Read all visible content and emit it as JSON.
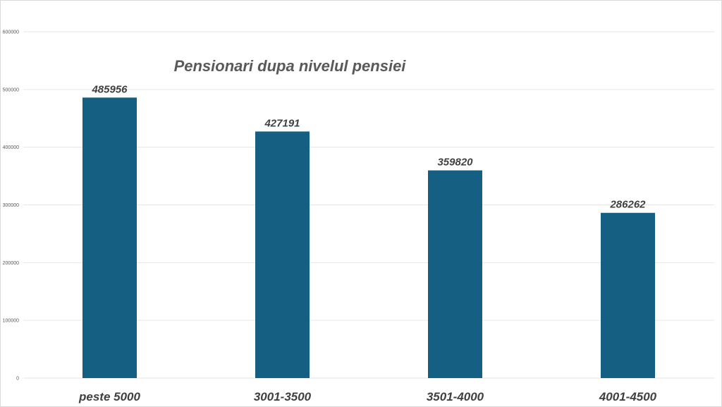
{
  "chart_data": {
    "type": "bar",
    "title": "Pensionari dupa nivelul pensiei",
    "xlabel": "",
    "ylabel": "",
    "categories": [
      "peste 5000",
      "3001-3500",
      "3501-4000",
      "4001-4500"
    ],
    "values": [
      485956,
      427191,
      359820,
      286262
    ],
    "data_labels": [
      "485956",
      "427191",
      "359820",
      "286262"
    ],
    "ylim": [
      0,
      600000
    ],
    "yticks": [
      0,
      100000,
      200000,
      300000,
      400000,
      500000,
      600000
    ],
    "ytick_labels": [
      "0",
      "100000",
      "200000",
      "300000",
      "400000",
      "500000",
      "600000"
    ],
    "grid": true,
    "legend": "none",
    "bar_color": "#156082"
  }
}
